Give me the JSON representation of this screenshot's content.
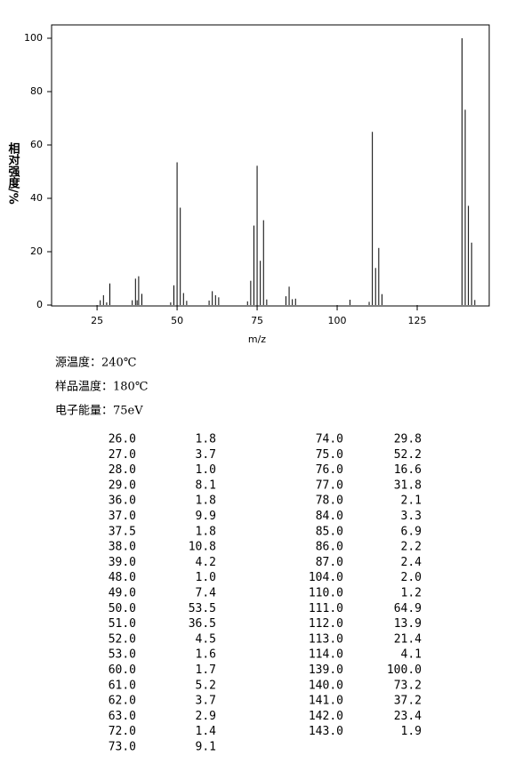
{
  "chart_data": {
    "type": "bar",
    "x_label": "m/z",
    "y_label": "相对强度/%",
    "x": [
      26,
      27,
      28,
      29,
      36,
      37,
      37.5,
      38,
      39,
      48,
      49,
      50,
      51,
      52,
      53,
      60,
      61,
      62,
      63,
      72,
      73,
      74,
      75,
      76,
      77,
      78,
      84,
      85,
      86,
      87,
      104,
      110,
      111,
      112,
      113,
      114,
      139,
      140,
      141,
      142,
      143
    ],
    "x_labels": [
      "26.0",
      "27.0",
      "28.0",
      "29.0",
      "36.0",
      "37.0",
      "37.5",
      "38.0",
      "39.0",
      "48.0",
      "49.0",
      "50.0",
      "51.0",
      "52.0",
      "53.0",
      "60.0",
      "61.0",
      "62.0",
      "63.0",
      "72.0",
      "73.0",
      "74.0",
      "75.0",
      "76.0",
      "77.0",
      "78.0",
      "84.0",
      "85.0",
      "86.0",
      "87.0",
      "104.0",
      "110.0",
      "111.0",
      "112.0",
      "113.0",
      "114.0",
      "139.0",
      "140.0",
      "141.0",
      "142.0",
      "143.0"
    ],
    "values": [
      1.8,
      3.7,
      1.0,
      8.1,
      1.8,
      9.9,
      1.8,
      10.8,
      4.2,
      1.0,
      7.4,
      53.5,
      36.5,
      4.5,
      1.6,
      1.7,
      5.2,
      3.7,
      2.9,
      1.4,
      9.1,
      29.8,
      52.2,
      16.6,
      31.8,
      2.1,
      3.3,
      6.9,
      2.2,
      2.4,
      2.0,
      1.2,
      64.9,
      13.9,
      21.4,
      4.1,
      100,
      73.2,
      37.2,
      23.4,
      1.9
    ],
    "value_labels": [
      "1.8",
      "3.7",
      "1.0",
      "8.1",
      "1.8",
      "9.9",
      "1.8",
      "10.8",
      "4.2",
      "1.0",
      "7.4",
      "53.5",
      "36.5",
      "4.5",
      "1.6",
      "1.7",
      "5.2",
      "3.7",
      "2.9",
      "1.4",
      "9.1",
      "29.8",
      "52.2",
      "16.6",
      "31.8",
      "2.1",
      "3.3",
      "6.9",
      "2.2",
      "2.4",
      "2.0",
      "1.2",
      "64.9",
      "13.9",
      "21.4",
      "4.1",
      "100.0",
      "73.2",
      "37.2",
      "23.4",
      "1.9"
    ],
    "color": "#000000",
    "xlim": [
      10.8,
      147.5
    ],
    "xticks": [
      25,
      50,
      75,
      100,
      125
    ],
    "ylim": [
      0,
      105
    ],
    "yticks": [
      0,
      20,
      40,
      60,
      80,
      100
    ]
  },
  "conditions": [
    "源温度：240℃",
    "样品温度：180℃",
    "电子能量：75eV"
  ]
}
